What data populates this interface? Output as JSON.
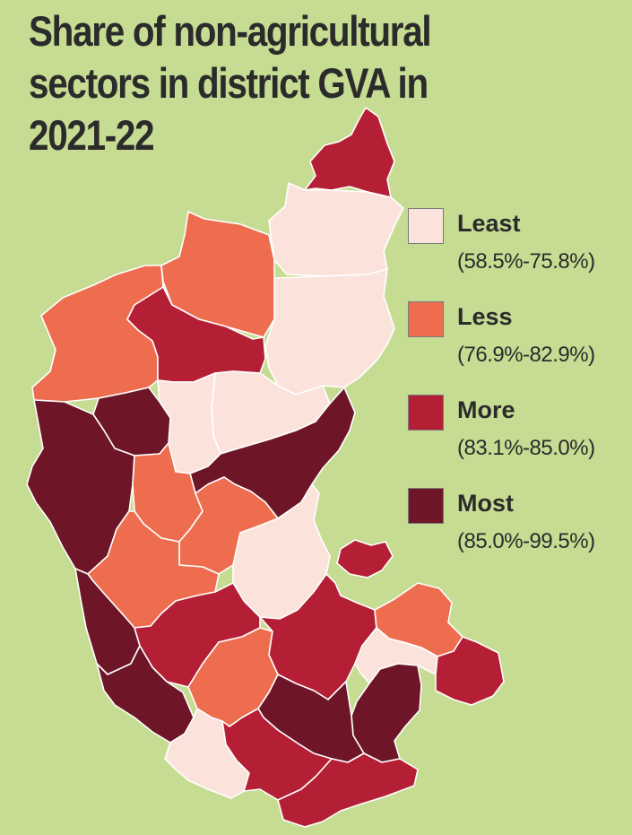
{
  "title_lines": [
    "Share of non-agricultural",
    "sectors in district GVA in",
    "2021-22"
  ],
  "legend": [
    {
      "name": "Least",
      "range": "(58.5%-75.8%)",
      "color": "#fbe3dc"
    },
    {
      "name": "Less",
      "range": "(76.9%-82.9%)",
      "color": "#ee6d4f"
    },
    {
      "name": "More",
      "range": "(83.1%-85.0%)",
      "color": "#b51f35"
    },
    {
      "name": "Most",
      "range": "(85.0%-99.5%)",
      "color": "#6e1628"
    }
  ],
  "colors": {
    "background": "#c6dc92",
    "district_border": "#ffffff",
    "title": "#2b2b2b"
  }
}
